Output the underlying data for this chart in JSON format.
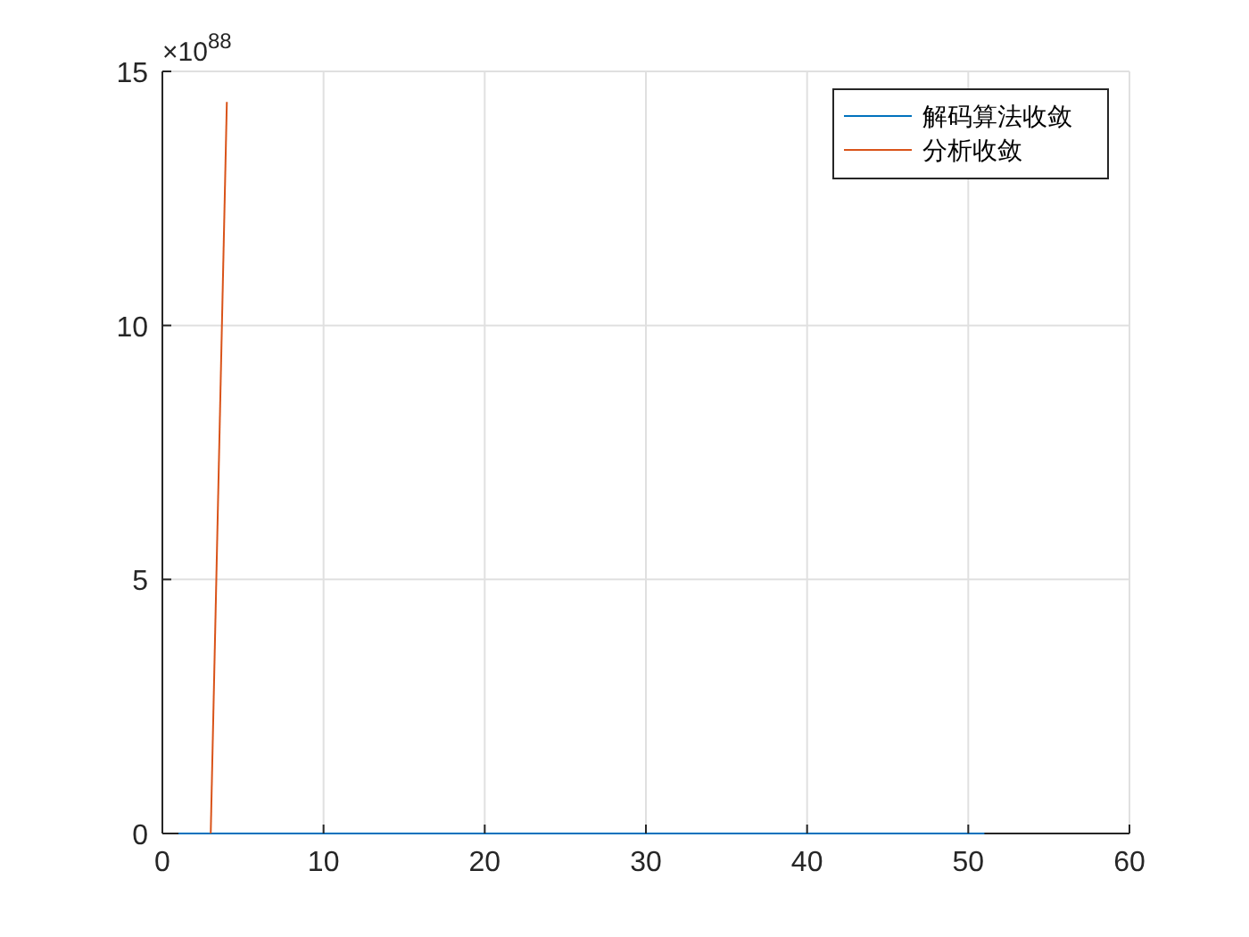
{
  "chart_data": {
    "type": "line",
    "xlim": [
      0,
      60
    ],
    "xticks": [
      0,
      10,
      20,
      30,
      40,
      50,
      60
    ],
    "ylim": [
      0,
      15
    ],
    "yticks": [
      0,
      5,
      10,
      15
    ],
    "grid": true,
    "legend": "top right",
    "annotations": [
      "×10$^{88}$"
    ],
    "series": [
      {
        "name": "解码算法收敛",
        "color": "#0072bd",
        "x": [
          1,
          51
        ],
        "values": [
          0,
          0
        ]
      },
      {
        "name": "分析收敛",
        "color": "#d95319",
        "x": [
          3,
          4
        ],
        "values": [
          0,
          14.4
        ]
      }
    ]
  }
}
